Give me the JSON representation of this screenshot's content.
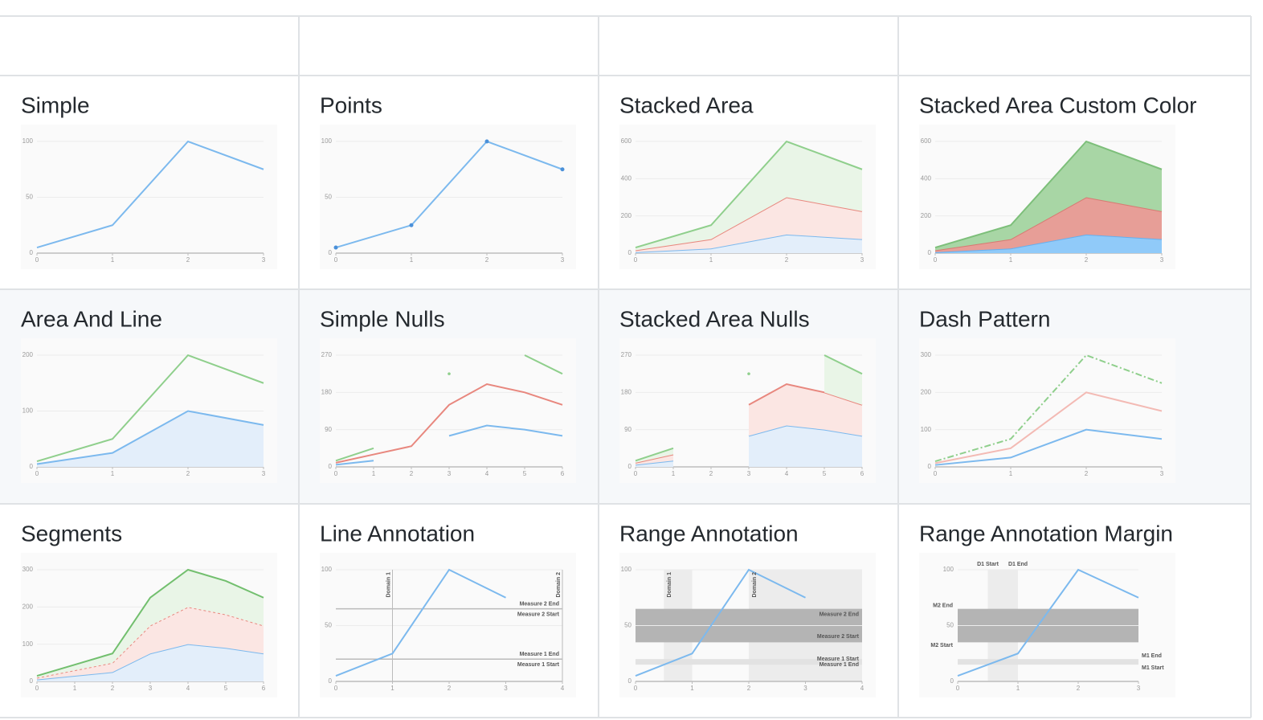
{
  "chart_data": [
    {
      "type": "line",
      "title": "Simple",
      "x": [
        0,
        1,
        2,
        3
      ],
      "xlim": [
        0,
        3
      ],
      "xticks": [
        0,
        1,
        2,
        3
      ],
      "ylim": [
        0,
        100
      ],
      "yticks": [
        0,
        50,
        100
      ],
      "grid": true,
      "series": [
        {
          "color": "#7cb9ee",
          "values": [
            5,
            25,
            100,
            75
          ]
        }
      ]
    },
    {
      "type": "line",
      "title": "Points",
      "x": [
        0,
        1,
        2,
        3
      ],
      "xlim": [
        0,
        3
      ],
      "xticks": [
        0,
        1,
        2,
        3
      ],
      "ylim": [
        0,
        100
      ],
      "yticks": [
        0,
        50,
        100
      ],
      "grid": true,
      "points": true,
      "series": [
        {
          "color": "#7cb9ee",
          "values": [
            5,
            25,
            100,
            75
          ]
        }
      ]
    },
    {
      "type": "line",
      "title": "Stacked Area",
      "x": [
        0,
        1,
        2,
        3
      ],
      "xlim": [
        0,
        3
      ],
      "xticks": [
        0,
        1,
        2,
        3
      ],
      "ylim": [
        0,
        600
      ],
      "yticks": [
        0,
        200,
        400,
        600
      ],
      "grid": true,
      "stacked": true,
      "series": [
        {
          "color": "#7cb9ee",
          "fill": "#e3eefa",
          "values": [
            5,
            25,
            100,
            75
          ]
        },
        {
          "color": "#e8877e",
          "fill": "#fbe6e3",
          "values": [
            10,
            50,
            200,
            150
          ]
        },
        {
          "color": "#8fcf8c",
          "fill": "#e9f5e7",
          "values": [
            15,
            75,
            300,
            225
          ]
        }
      ]
    },
    {
      "type": "line",
      "title": "Stacked Area Custom Color",
      "x": [
        0,
        1,
        2,
        3
      ],
      "xlim": [
        0,
        3
      ],
      "xticks": [
        0,
        1,
        2,
        3
      ],
      "ylim": [
        0,
        600
      ],
      "yticks": [
        0,
        200,
        400,
        600
      ],
      "grid": true,
      "stacked": true,
      "series": [
        {
          "color": "#64b0f0",
          "fill": "#90caf9",
          "values": [
            5,
            25,
            100,
            75
          ]
        },
        {
          "color": "#d77a72",
          "fill": "#e79e97",
          "values": [
            10,
            50,
            200,
            150
          ]
        },
        {
          "color": "#7dbf7a",
          "fill": "#a8d6a5",
          "values": [
            15,
            75,
            300,
            225
          ]
        }
      ]
    },
    {
      "type": "line",
      "title": "Area And Line",
      "x": [
        0,
        1,
        2,
        3
      ],
      "xlim": [
        0,
        3
      ],
      "xticks": [
        0,
        1,
        2,
        3
      ],
      "ylim": [
        0,
        200
      ],
      "yticks": [
        0,
        100,
        200
      ],
      "grid": true,
      "series": [
        {
          "color": "#7cb9ee",
          "fill": "#e3eefa",
          "values": [
            5,
            25,
            100,
            75
          ]
        },
        {
          "color": "#8fcf8c",
          "values": [
            10,
            50,
            200,
            150
          ]
        }
      ]
    },
    {
      "type": "line",
      "title": "Simple Nulls",
      "x": [
        0,
        1,
        2,
        3,
        4,
        5,
        6
      ],
      "xlim": [
        0,
        6
      ],
      "xticks": [
        0,
        1,
        2,
        3,
        4,
        5,
        6
      ],
      "ylim": [
        0,
        270
      ],
      "yticks": [
        0,
        90,
        180,
        270
      ],
      "grid": true,
      "series": [
        {
          "color": "#7cb9ee",
          "values": [
            5,
            15,
            null,
            75,
            100,
            90,
            75
          ]
        },
        {
          "color": "#e8877e",
          "values": [
            10,
            30,
            50,
            150,
            200,
            180,
            150
          ]
        },
        {
          "color": "#8fcf8c",
          "values": [
            15,
            45,
            null,
            225,
            null,
            270,
            225
          ]
        }
      ]
    },
    {
      "type": "line",
      "title": "Stacked Area Nulls",
      "x": [
        0,
        1,
        2,
        3,
        4,
        5,
        6
      ],
      "xlim": [
        0,
        6
      ],
      "xticks": [
        0,
        1,
        2,
        3,
        4,
        5,
        6
      ],
      "ylim": [
        0,
        270
      ],
      "yticks": [
        0,
        90,
        180,
        270
      ],
      "grid": true,
      "stacked": true,
      "series": [
        {
          "color": "#7cb9ee",
          "fill": "#e3eefa",
          "values": [
            5,
            15,
            null,
            75,
            100,
            90,
            75
          ]
        },
        {
          "color": "#e8877e",
          "fill": "#fbe6e3",
          "values": [
            5,
            15,
            null,
            75,
            100,
            90,
            75
          ]
        },
        {
          "color": "#8fcf8c",
          "fill": "#e9f5e7",
          "values": [
            5,
            15,
            null,
            75,
            null,
            90,
            75
          ]
        }
      ]
    },
    {
      "type": "line",
      "title": "Dash Pattern",
      "x": [
        0,
        1,
        2,
        3
      ],
      "xlim": [
        0,
        3
      ],
      "xticks": [
        0,
        1,
        2,
        3
      ],
      "ylim": [
        0,
        300
      ],
      "yticks": [
        0,
        100,
        200,
        300
      ],
      "grid": true,
      "series": [
        {
          "color": "#7cb9ee",
          "values": [
            5,
            25,
            100,
            75
          ]
        },
        {
          "color": "#f3bab4",
          "values": [
            10,
            50,
            200,
            150
          ]
        },
        {
          "color": "#8fcf8c",
          "dash": [
            8,
            3,
            2,
            3
          ],
          "values": [
            15,
            75,
            300,
            225
          ]
        }
      ]
    },
    {
      "type": "line",
      "title": "Segments",
      "x": [
        0,
        1,
        2,
        3,
        4,
        5,
        6
      ],
      "xlim": [
        0,
        6
      ],
      "xticks": [
        0,
        1,
        2,
        3,
        4,
        5,
        6
      ],
      "ylim": [
        0,
        300
      ],
      "yticks": [
        0,
        100,
        200,
        300
      ],
      "grid": true,
      "stacked": true,
      "series": [
        {
          "color": "#7cb9ee",
          "fill": "#e3eefa",
          "values": [
            5,
            15,
            25,
            75,
            100,
            90,
            75
          ]
        },
        {
          "color": "#e8877e",
          "fill": "#fbe6e3",
          "dash": [
            3,
            3
          ],
          "values": [
            5,
            15,
            25,
            75,
            100,
            90,
            75
          ]
        },
        {
          "color": "#72bf6e",
          "fill": "#e9f5e7",
          "values": [
            5,
            15,
            25,
            75,
            100,
            90,
            75
          ]
        }
      ]
    },
    {
      "type": "line",
      "title": "Line Annotation",
      "x": [
        0,
        1,
        2,
        3
      ],
      "xlim": [
        0,
        4
      ],
      "xticks": [
        0,
        1,
        2,
        3,
        4
      ],
      "ylim": [
        0,
        100
      ],
      "yticks": [
        0,
        50,
        100
      ],
      "grid": true,
      "series": [
        {
          "color": "#7cb9ee",
          "values": [
            5,
            25,
            100,
            75
          ]
        }
      ],
      "annotations": [
        {
          "axis": "x",
          "value": 1,
          "label": "Domain 1",
          "color": "#bbbbbb"
        },
        {
          "axis": "x",
          "value": 4,
          "label": "Domain 2",
          "color": "#bbbbbb"
        },
        {
          "axis": "y",
          "value": 20,
          "start_label": "Measure 1 Start",
          "end_label": "Measure 1 End",
          "color": "#bbbbbb"
        },
        {
          "axis": "y",
          "value": 65,
          "start_label": "Measure 2 Start",
          "end_label": "Measure 2 End",
          "color": "#bbbbbb"
        }
      ]
    },
    {
      "type": "line",
      "title": "Range Annotation",
      "x": [
        0,
        1,
        2,
        3
      ],
      "xlim": [
        0,
        4
      ],
      "xticks": [
        0,
        1,
        2,
        3,
        4
      ],
      "ylim": [
        0,
        100
      ],
      "yticks": [
        0,
        50,
        100
      ],
      "grid": true,
      "series": [
        {
          "color": "#7cb9ee",
          "values": [
            5,
            25,
            100,
            75
          ]
        }
      ],
      "annotations": [
        {
          "axis": "x",
          "start": 0.5,
          "end": 1,
          "label": "Domain 1",
          "color": "#ececec"
        },
        {
          "axis": "x",
          "start": 2,
          "end": 4,
          "label": "Domain 2",
          "color": "#ececec"
        },
        {
          "axis": "y",
          "start": 15,
          "end": 20,
          "start_label": "Measure 1 Start",
          "end_label": "Measure 1 End",
          "color": "#e2e2e2"
        },
        {
          "axis": "y",
          "start": 35,
          "end": 65,
          "start_label": "Measure 2 Start",
          "end_label": "Measure 2 End",
          "color": "#b4b4b4"
        }
      ]
    },
    {
      "type": "line",
      "title": "Range Annotation Margin",
      "x": [
        0,
        1,
        2,
        3
      ],
      "xlim": [
        0,
        3
      ],
      "xticks": [
        0,
        1,
        2,
        3
      ],
      "ylim": [
        0,
        100
      ],
      "yticks": [
        0,
        50,
        100
      ],
      "grid": true,
      "annotation_labels": "margin",
      "series": [
        {
          "color": "#7cb9ee",
          "values": [
            5,
            25,
            100,
            75
          ]
        }
      ],
      "annotations": [
        {
          "axis": "x",
          "start": 0.5,
          "end": 1,
          "start_label": "D1 Start",
          "end_label": "D1 End",
          "color": "#ececec"
        },
        {
          "axis": "y",
          "start": 15,
          "end": 20,
          "start_label": "M1 Start",
          "end_label": "M1 End",
          "color": "#e2e2e2",
          "side": "right"
        },
        {
          "axis": "y",
          "start": 35,
          "end": 65,
          "start_label": "M2 Start",
          "end_label": "M2 End",
          "color": "#b4b4b4",
          "side": "left"
        }
      ]
    }
  ]
}
